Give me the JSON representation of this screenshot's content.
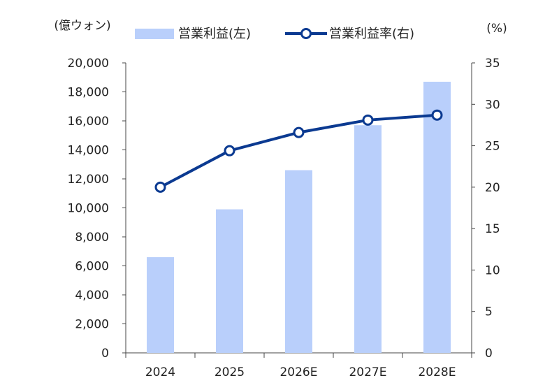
{
  "chart_data": {
    "type": "bar+line",
    "categories": [
      "2024",
      "2025",
      "2026E",
      "2027E",
      "2028E"
    ],
    "series": [
      {
        "name": "営業利益(左)",
        "type": "bar",
        "axis": "left",
        "values": [
          6600,
          9900,
          12600,
          15700,
          18700
        ],
        "color": "#b9cffb"
      },
      {
        "name": "営業利益率(右)",
        "type": "line",
        "axis": "right",
        "values": [
          20.0,
          24.4,
          26.6,
          28.1,
          28.7
        ],
        "color": "#0b3a91"
      }
    ],
    "left_axis": {
      "unit_label": "(億ウォン)",
      "ylim": [
        0,
        20000
      ],
      "ticks": [
        "0",
        "2,000",
        "4,000",
        "6,000",
        "8,000",
        "10,000",
        "12,000",
        "14,000",
        "16,000",
        "18,000",
        "20,000"
      ]
    },
    "right_axis": {
      "unit_label": "(%)",
      "ylim": [
        0,
        35
      ],
      "ticks": [
        "0",
        "5",
        "10",
        "15",
        "20",
        "25",
        "30",
        "35"
      ]
    },
    "grid": false,
    "legend_position": "top"
  }
}
